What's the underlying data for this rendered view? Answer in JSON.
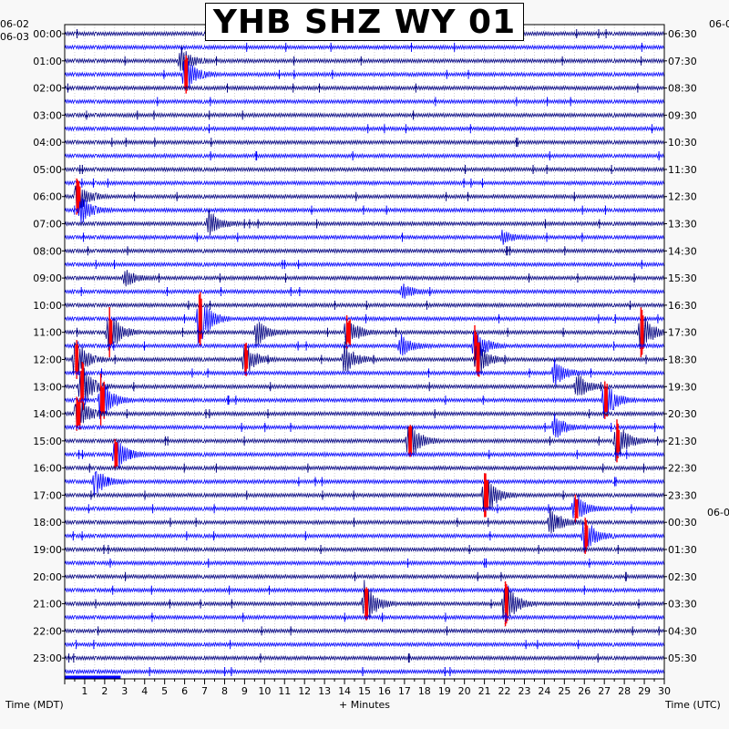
{
  "chart_data": {
    "type": "line",
    "title": "YHB SHZ WY 01",
    "date_left_start": "06-02",
    "date_left_main": "06-03",
    "date_right_next": "06-0",
    "xlabel_left": "Time (MDT)",
    "xlabel_center": "+ Minutes",
    "xlabel_right": "Time (UTC)",
    "x_ticks": [
      "1",
      "2",
      "3",
      "4",
      "5",
      "6",
      "7",
      "8",
      "9",
      "10",
      "11",
      "12",
      "13",
      "14",
      "15",
      "16",
      "17",
      "18",
      "19",
      "20",
      "21",
      "22",
      "23",
      "24",
      "25",
      "26",
      "27",
      "28",
      "29",
      "30"
    ],
    "xlim": [
      0,
      30
    ],
    "left_hours": [
      "00:00",
      "01:00",
      "02:00",
      "03:00",
      "04:00",
      "05:00",
      "06:00",
      "07:00",
      "08:00",
      "09:00",
      "10:00",
      "11:00",
      "12:00",
      "13:00",
      "14:00",
      "15:00",
      "16:00",
      "17:00",
      "18:00",
      "19:00",
      "20:00",
      "21:00",
      "22:00",
      "23:00"
    ],
    "right_hours": [
      "06:30",
      "07:30",
      "08:30",
      "09:30",
      "10:30",
      "11:30",
      "12:30",
      "13:30",
      "14:30",
      "15:30",
      "16:30",
      "17:30",
      "18:30",
      "19:30",
      "20:30",
      "21:30",
      "22:30",
      "23:30",
      "00:30",
      "01:30",
      "02:30",
      "03:30",
      "04:30",
      "05:30"
    ],
    "traces_per_hour": 2,
    "trace_colors": [
      "#000080",
      "#0000ff"
    ],
    "clipped_color": "#ff0000",
    "events": [
      {
        "trace": 2,
        "minute": 5.8,
        "amp": 1.0
      },
      {
        "trace": 3,
        "minute": 6.0,
        "amp": 1.3
      },
      {
        "trace": 12,
        "minute": 0.6,
        "amp": 1.2
      },
      {
        "trace": 13,
        "minute": 0.8,
        "amp": 1.0
      },
      {
        "trace": 14,
        "minute": 7.2,
        "amp": 0.9
      },
      {
        "trace": 15,
        "minute": 21.9,
        "amp": 0.4
      },
      {
        "trace": 18,
        "minute": 3.0,
        "amp": 0.6
      },
      {
        "trace": 19,
        "minute": 16.9,
        "amp": 0.5
      },
      {
        "trace": 21,
        "minute": 6.7,
        "amp": 2.0
      },
      {
        "trace": 22,
        "minute": 2.2,
        "amp": 1.6
      },
      {
        "trace": 22,
        "minute": 9.6,
        "amp": 0.9
      },
      {
        "trace": 22,
        "minute": 14.1,
        "amp": 1.2
      },
      {
        "trace": 22,
        "minute": 28.8,
        "amp": 1.6
      },
      {
        "trace": 23,
        "minute": 16.8,
        "amp": 0.8
      },
      {
        "trace": 23,
        "minute": 20.5,
        "amp": 1.3
      },
      {
        "trace": 24,
        "minute": 0.5,
        "amp": 1.6
      },
      {
        "trace": 24,
        "minute": 9.0,
        "amp": 1.2
      },
      {
        "trace": 24,
        "minute": 14.0,
        "amp": 1.1
      },
      {
        "trace": 24,
        "minute": 20.6,
        "amp": 1.4
      },
      {
        "trace": 25,
        "minute": 24.5,
        "amp": 0.9
      },
      {
        "trace": 26,
        "minute": 0.8,
        "amp": 1.8
      },
      {
        "trace": 26,
        "minute": 25.6,
        "amp": 0.9
      },
      {
        "trace": 27,
        "minute": 1.8,
        "amp": 1.6
      },
      {
        "trace": 27,
        "minute": 27.0,
        "amp": 1.4
      },
      {
        "trace": 28,
        "minute": 0.6,
        "amp": 1.4
      },
      {
        "trace": 29,
        "minute": 24.5,
        "amp": 0.9
      },
      {
        "trace": 30,
        "minute": 17.2,
        "amp": 1.5
      },
      {
        "trace": 30,
        "minute": 27.6,
        "amp": 1.5
      },
      {
        "trace": 31,
        "minute": 2.5,
        "amp": 1.3
      },
      {
        "trace": 33,
        "minute": 1.5,
        "amp": 1.0
      },
      {
        "trace": 34,
        "minute": 21.0,
        "amp": 1.6
      },
      {
        "trace": 35,
        "minute": 25.5,
        "amp": 1.2
      },
      {
        "trace": 36,
        "minute": 24.3,
        "amp": 1.0
      },
      {
        "trace": 37,
        "minute": 26.0,
        "amp": 1.3
      },
      {
        "trace": 42,
        "minute": 15.0,
        "amp": 1.6
      },
      {
        "trace": 42,
        "minute": 22.0,
        "amp": 1.6
      }
    ]
  }
}
